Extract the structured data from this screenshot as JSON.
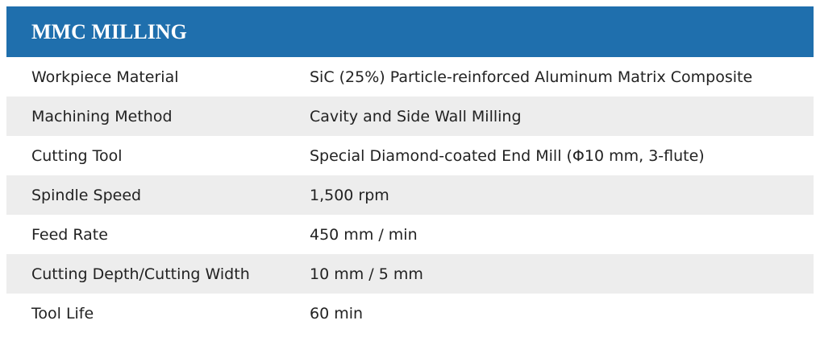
{
  "header": {
    "title": "MMC MILLING"
  },
  "table": {
    "rows": [
      [
        "Workpiece Material",
        "SiC (25%) Particle-reinforced Aluminum Matrix Composite"
      ],
      [
        "Machining Method",
        "Cavity and Side Wall Milling"
      ],
      [
        "Cutting Tool",
        "Special Diamond-coated End Mill (Φ10 mm,  3-flute)"
      ],
      [
        "Spindle Speed",
        "1,500 rpm"
      ],
      [
        "Feed Rate",
        "450 mm / min"
      ],
      [
        "Cutting Depth/Cutting Width",
        "10 mm / 5 mm"
      ],
      [
        "Tool Life",
        "60 min"
      ]
    ]
  }
}
